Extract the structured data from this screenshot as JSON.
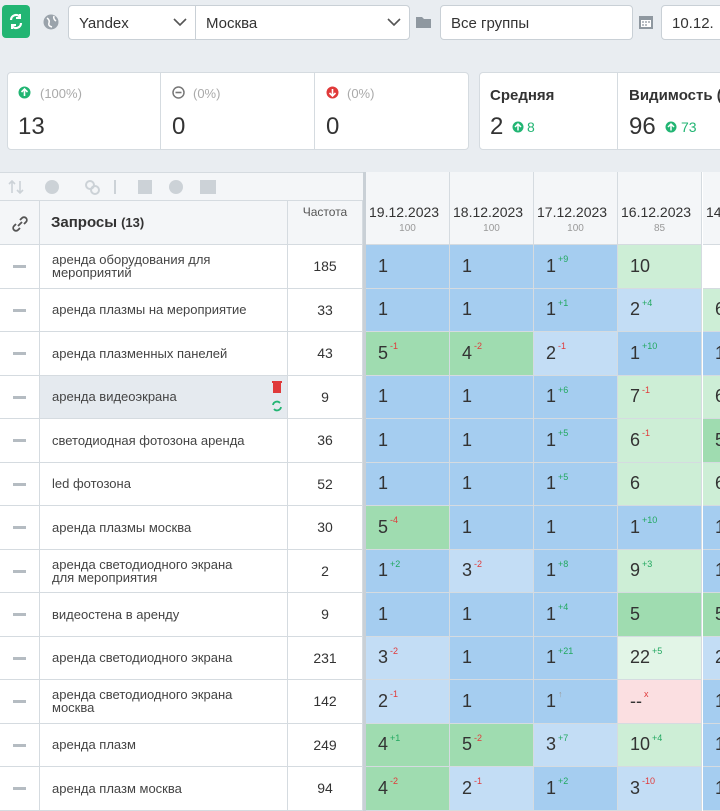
{
  "toolbar": {
    "engine": "Yandex",
    "region": "Москва",
    "group": "Все группы",
    "date": "10.12."
  },
  "summary": {
    "up": {
      "percent": "(100%)",
      "count": 13
    },
    "same": {
      "percent": "(0%)",
      "count": 0
    },
    "down": {
      "percent": "(0%)",
      "count": 0
    },
    "average": {
      "label": "Средняя",
      "value": 2,
      "change": 8
    },
    "visibility": {
      "label": "Видимость (",
      "value": 96,
      "change": 73
    }
  },
  "table": {
    "title": "Запросы",
    "count": "(13)",
    "frequency_label": "Частота",
    "dates": [
      {
        "date": "19.12.2023",
        "score": 100
      },
      {
        "date": "18.12.2023",
        "score": 100
      },
      {
        "date": "17.12.2023",
        "score": 100
      },
      {
        "date": "16.12.2023",
        "score": 85
      },
      {
        "date": "14"
      }
    ],
    "rows": [
      {
        "query": "аренда оборудования для мероприятий",
        "frequency": 185,
        "positions": [
          {
            "pos": 1
          },
          {
            "pos": 1
          },
          {
            "pos": 1,
            "delta": "+9"
          },
          {
            "pos": 10
          },
          null
        ]
      },
      {
        "query": "аренда плазмы на мероприятие",
        "frequency": 33,
        "positions": [
          {
            "pos": 1
          },
          {
            "pos": 1
          },
          {
            "pos": 1,
            "delta": "+1"
          },
          {
            "pos": 2,
            "delta": "+4"
          },
          {
            "pos": 6
          }
        ]
      },
      {
        "query": "аренда плазменных панелей",
        "frequency": 43,
        "positions": [
          {
            "pos": 5,
            "delta": "-1"
          },
          {
            "pos": 4,
            "delta": "-2"
          },
          {
            "pos": 2,
            "delta": "-1"
          },
          {
            "pos": 1,
            "delta": "+10"
          },
          {
            "pos": 1
          }
        ]
      },
      {
        "query": "аренда видеоэкрана",
        "frequency": 9,
        "positions": [
          {
            "pos": 1
          },
          {
            "pos": 1
          },
          {
            "pos": 1,
            "delta": "+6"
          },
          {
            "pos": 7,
            "delta": "-1"
          },
          {
            "pos": 6
          }
        ]
      },
      {
        "query": "светодиодная фотозона аренда",
        "frequency": 36,
        "positions": [
          {
            "pos": 1
          },
          {
            "pos": 1
          },
          {
            "pos": 1,
            "delta": "+5"
          },
          {
            "pos": 6,
            "delta": "-1"
          },
          {
            "pos": 5
          }
        ]
      },
      {
        "query": "led фотозона",
        "frequency": 52,
        "positions": [
          {
            "pos": 1
          },
          {
            "pos": 1
          },
          {
            "pos": 1,
            "delta": "+5"
          },
          {
            "pos": 6
          },
          {
            "pos": 6
          }
        ]
      },
      {
        "query": "аренда плазмы москва",
        "frequency": 30,
        "positions": [
          {
            "pos": 5,
            "delta": "-4"
          },
          {
            "pos": 1
          },
          {
            "pos": 1
          },
          {
            "pos": 1,
            "delta": "+10"
          },
          {
            "pos": 1
          }
        ]
      },
      {
        "query": "аренда светодиодного экрана для мероприятия",
        "frequency": 2,
        "positions": [
          {
            "pos": 1,
            "delta": "+2"
          },
          {
            "pos": 3,
            "delta": "-2"
          },
          {
            "pos": 1,
            "delta": "+8"
          },
          {
            "pos": 9,
            "delta": "+3"
          },
          {
            "pos": 1
          }
        ]
      },
      {
        "query": "видеостена в аренду",
        "frequency": 9,
        "positions": [
          {
            "pos": 1
          },
          {
            "pos": 1
          },
          {
            "pos": 1,
            "delta": "+4"
          },
          {
            "pos": 5
          },
          {
            "pos": 5
          }
        ]
      },
      {
        "query": "аренда светодиодного экрана",
        "frequency": 231,
        "positions": [
          {
            "pos": 3,
            "delta": "-2"
          },
          {
            "pos": 1
          },
          {
            "pos": 1,
            "delta": "+21"
          },
          {
            "pos": 22,
            "delta": "+5"
          },
          {
            "pos": 2
          }
        ]
      },
      {
        "query": "аренда светодиодного экрана москва",
        "frequency": 142,
        "positions": [
          {
            "pos": 2,
            "delta": "-1"
          },
          {
            "pos": 1
          },
          {
            "pos": 1,
            "delta": "↑"
          },
          {
            "pos": "--",
            "delta": "x"
          },
          {
            "pos": 1
          }
        ]
      },
      {
        "query": "аренда плазм",
        "frequency": 249,
        "positions": [
          {
            "pos": 4,
            "delta": "+1"
          },
          {
            "pos": 5,
            "delta": "-2"
          },
          {
            "pos": 3,
            "delta": "+7"
          },
          {
            "pos": 10,
            "delta": "+4"
          },
          {
            "pos": 1
          }
        ]
      },
      {
        "query": "аренда плазм москва",
        "frequency": 94,
        "positions": [
          {
            "pos": 4,
            "delta": "-2"
          },
          {
            "pos": 2,
            "delta": "-1"
          },
          {
            "pos": 1,
            "delta": "+2"
          },
          {
            "pos": 3,
            "delta": "-10"
          },
          {
            "pos": 1
          }
        ]
      }
    ]
  }
}
